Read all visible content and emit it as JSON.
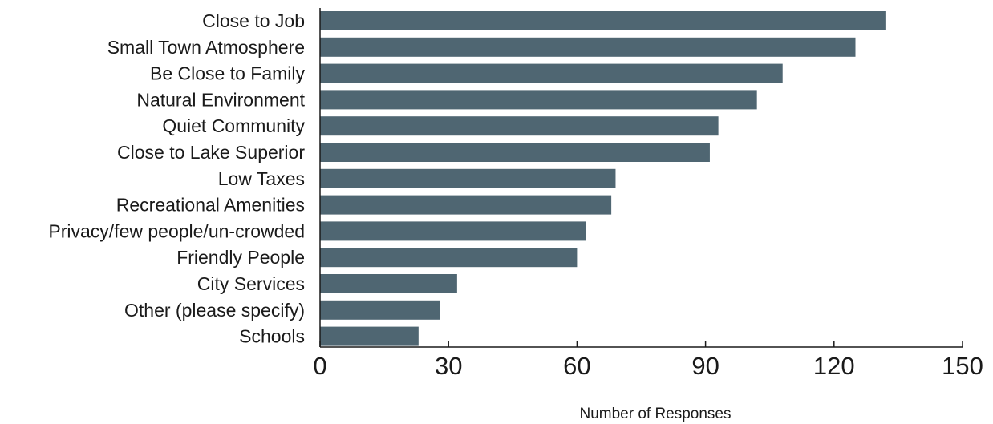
{
  "chart_data": {
    "type": "bar",
    "orientation": "horizontal",
    "categories": [
      "Close to Job",
      "Small Town Atmosphere",
      "Be Close to Family",
      "Natural Environment",
      "Quiet Community",
      "Close to Lake Superior",
      "Low Taxes",
      "Recreational Amenities",
      "Privacy/few people/un-crowded",
      "Friendly People",
      "City Services",
      "Other (please specify)",
      "Schools"
    ],
    "values": [
      132,
      125,
      108,
      102,
      93,
      91,
      69,
      68,
      62,
      60,
      32,
      28,
      23
    ],
    "xlabel": "Number of Responses",
    "ylabel": "",
    "xlim": [
      0,
      150
    ],
    "xticks": [
      "0",
      "30",
      "60",
      "90",
      "120",
      "150"
    ],
    "grid": false,
    "legend": "none",
    "bar_color": "#4f6672"
  }
}
